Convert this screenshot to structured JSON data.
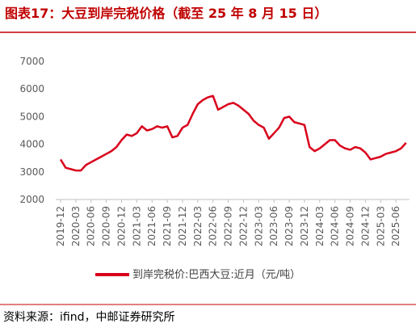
{
  "chart_data": {
    "type": "line",
    "title": "图表17：大豆到岸完税价格（截至 25 年 8 月 15 日）",
    "source": "资料来源：ifind，中邮证券研究所",
    "x": [
      "2019-12",
      "2020-01",
      "2020-02",
      "2020-03",
      "2020-04",
      "2020-05",
      "2020-06",
      "2020-07",
      "2020-08",
      "2020-09",
      "2020-10",
      "2020-11",
      "2020-12",
      "2021-01",
      "2021-02",
      "2021-03",
      "2021-04",
      "2021-05",
      "2021-06",
      "2021-07",
      "2021-08",
      "2021-09",
      "2021-10",
      "2021-11",
      "2021-12",
      "2022-01",
      "2022-02",
      "2022-03",
      "2022-04",
      "2022-05",
      "2022-06",
      "2022-07",
      "2022-08",
      "2022-09",
      "2022-10",
      "2022-11",
      "2022-12",
      "2023-01",
      "2023-02",
      "2023-03",
      "2023-04",
      "2023-05",
      "2023-06",
      "2023-07",
      "2023-08",
      "2023-09",
      "2023-10",
      "2023-11",
      "2023-12",
      "2024-01",
      "2024-02",
      "2024-03",
      "2024-04",
      "2024-05",
      "2024-06",
      "2024-07",
      "2024-08",
      "2024-09",
      "2024-10",
      "2024-11",
      "2024-12",
      "2025-01",
      "2025-02",
      "2025-03",
      "2025-04",
      "2025-05",
      "2025-06",
      "2025-07",
      "2025-08"
    ],
    "series": [
      {
        "name": "到岸完税价:巴西大豆:近月（元/吨）",
        "color": "#d9001b",
        "values": [
          3450,
          3150,
          3100,
          3050,
          3050,
          3250,
          3350,
          3450,
          3550,
          3650,
          3750,
          3900,
          4150,
          4350,
          4300,
          4400,
          4650,
          4500,
          4550,
          4650,
          4600,
          4650,
          4250,
          4300,
          4600,
          4700,
          5100,
          5450,
          5600,
          5700,
          5750,
          5250,
          5350,
          5450,
          5500,
          5400,
          5250,
          5100,
          4850,
          4700,
          4600,
          4200,
          4400,
          4600,
          4950,
          5000,
          4800,
          4750,
          4700,
          3900,
          3750,
          3850,
          4000,
          4150,
          4150,
          3950,
          3850,
          3800,
          3900,
          3850,
          3700,
          3450,
          3500,
          3550,
          3650,
          3700,
          3750,
          3850,
          4050
        ]
      }
    ],
    "ylim": [
      2000,
      7000
    ],
    "yticks": [
      2000,
      3000,
      4000,
      5000,
      6000,
      7000
    ],
    "grid": false
  }
}
